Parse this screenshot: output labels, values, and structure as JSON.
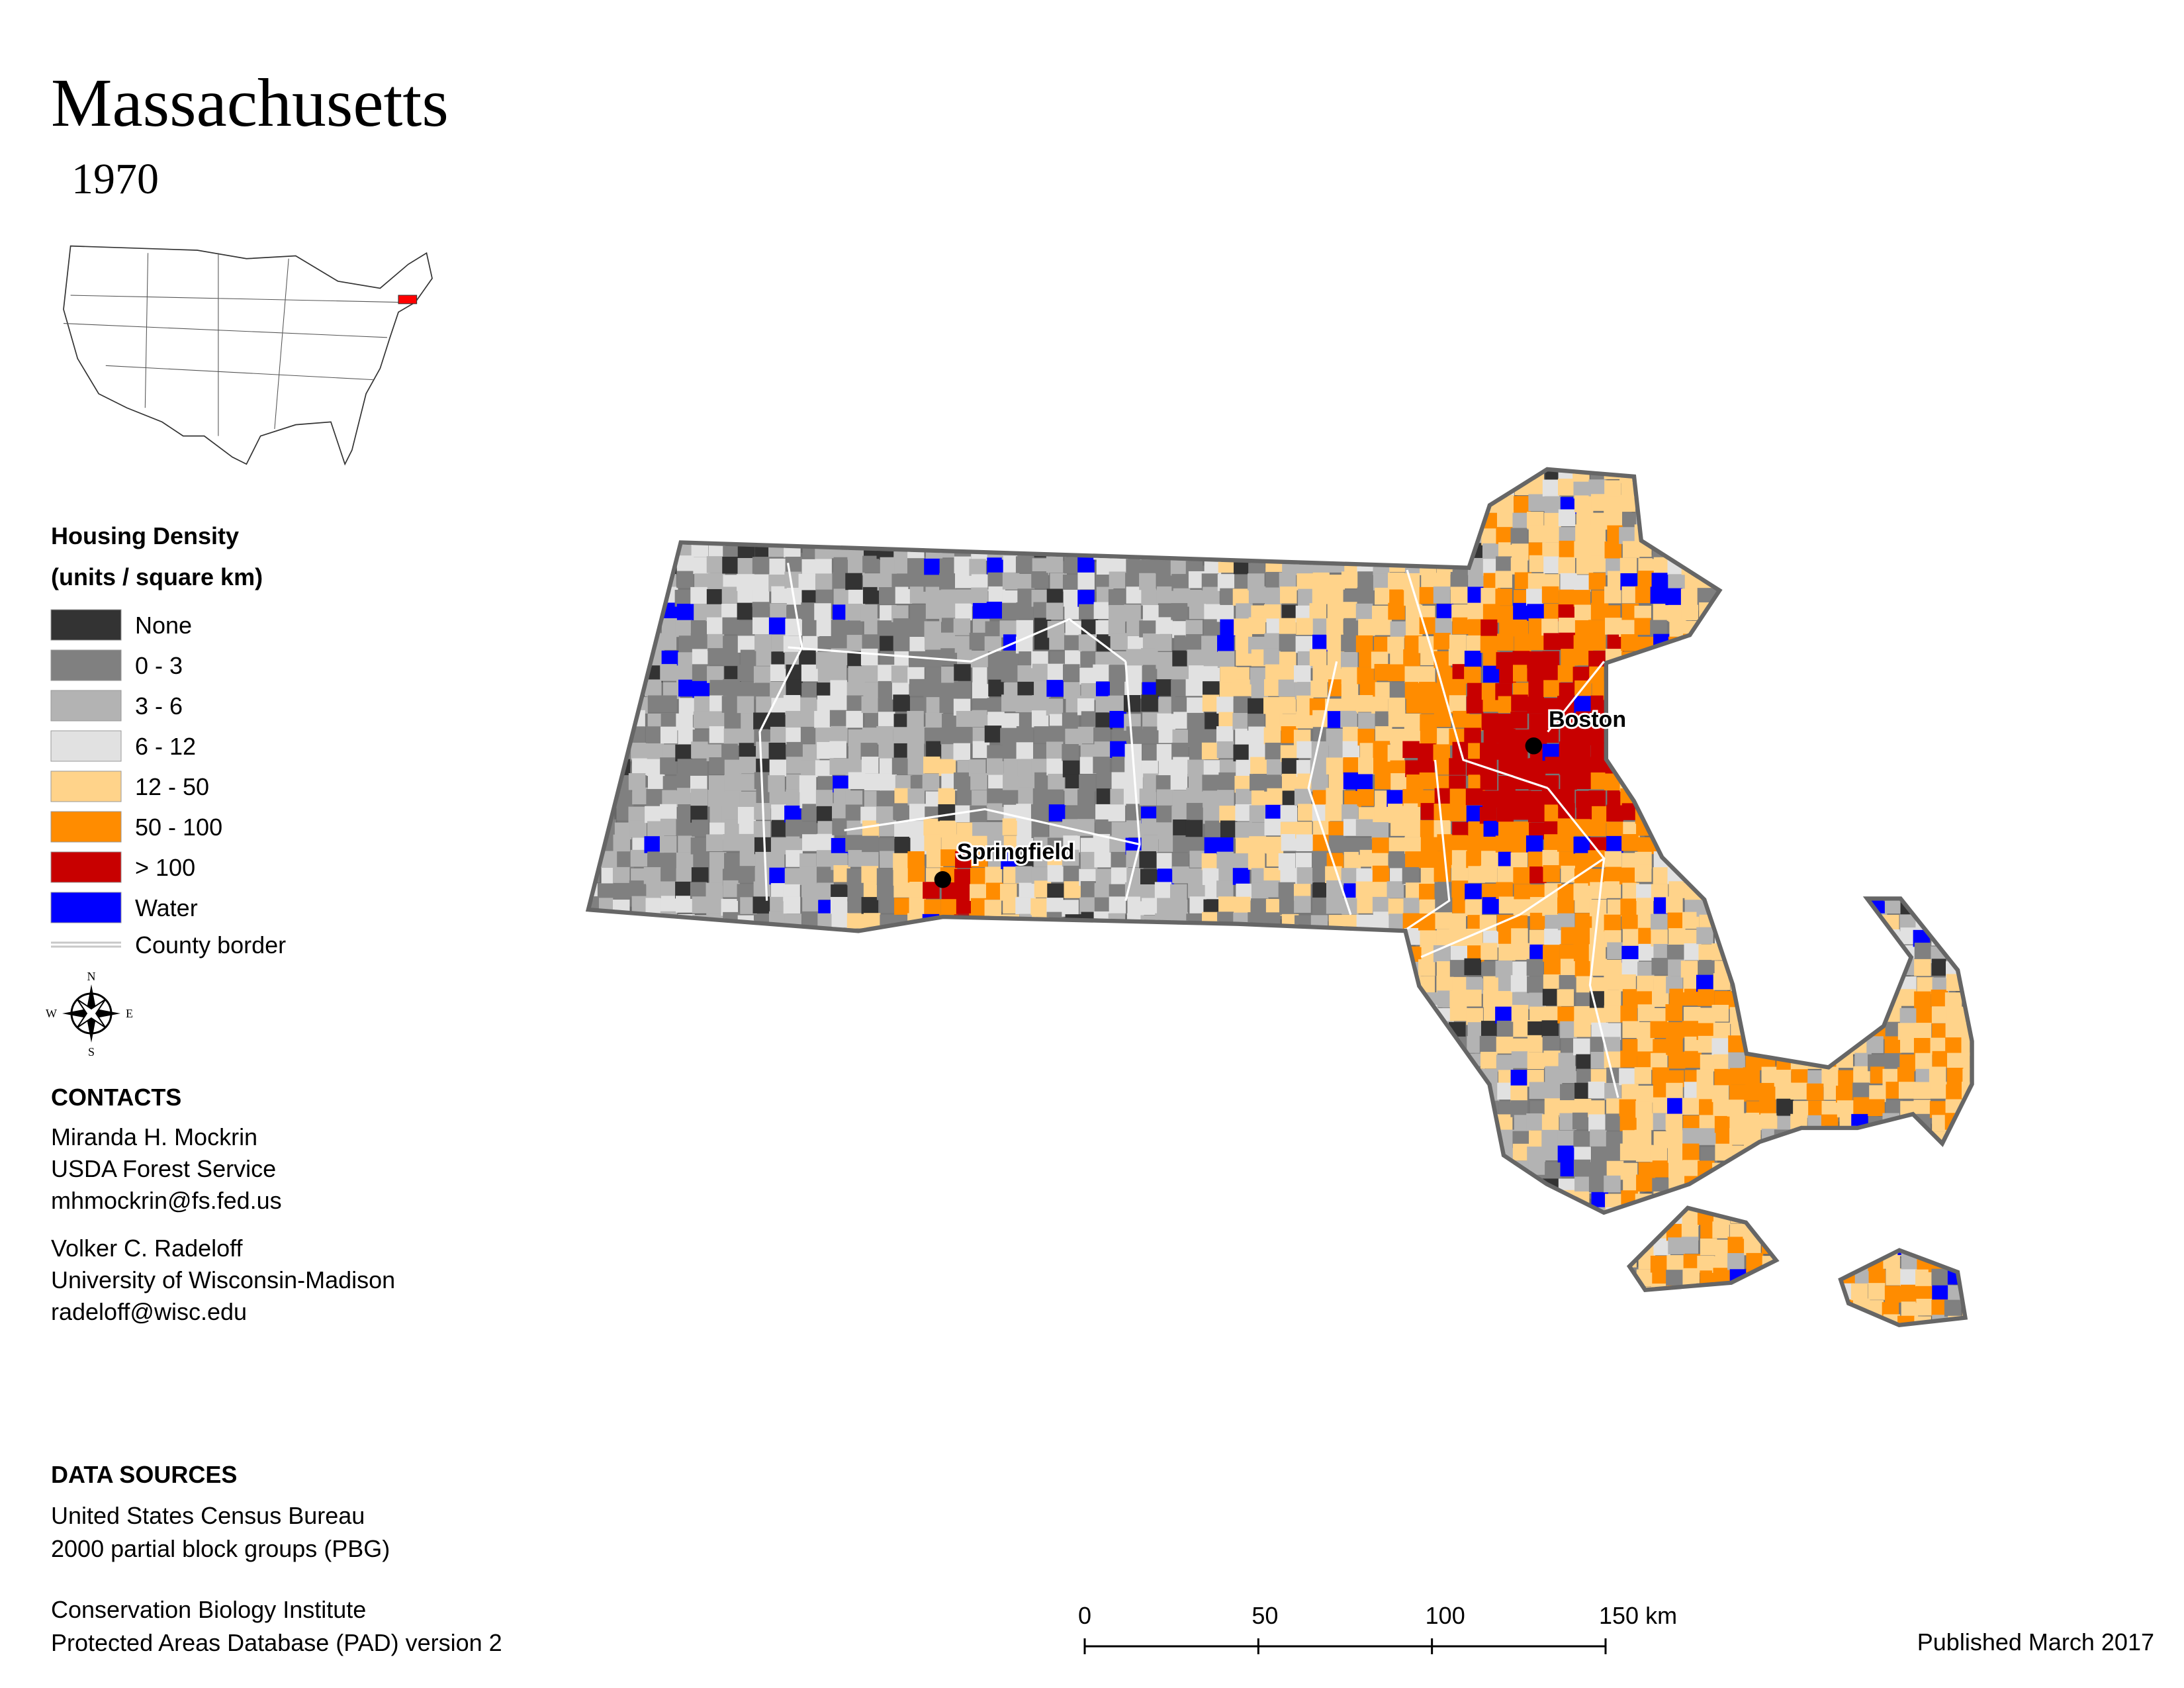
{
  "title": "Massachusetts",
  "subtitle": "1970",
  "legend": {
    "title": "Housing Density",
    "subtitle": "(units / square km)",
    "items": [
      {
        "label": "None",
        "color": "#333333"
      },
      {
        "label": "0 - 3",
        "color": "#808080"
      },
      {
        "label": "3 - 6",
        "color": "#b3b3b3"
      },
      {
        "label": "6 - 12",
        "color": "#e1e1e1"
      },
      {
        "label": "12 - 50",
        "color": "#ffd38a"
      },
      {
        "label": "50 - 100",
        "color": "#ff8c00"
      },
      {
        "label": "> 100",
        "color": "#c80000"
      },
      {
        "label": "Water",
        "color": "#0000ff"
      }
    ],
    "county_border": "County border"
  },
  "compass": {
    "n": "N",
    "e": "E",
    "s": "S",
    "w": "W"
  },
  "cities": [
    {
      "name": "Boston"
    },
    {
      "name": "Springfield"
    }
  ],
  "contacts": {
    "heading": "CONTACTS",
    "people": [
      [
        "Miranda H. Mockrin",
        "USDA Forest Service",
        "mhmockrin@fs.fed.us"
      ],
      [
        "Volker C. Radeloff",
        "University of Wisconsin-Madison",
        "radeloff@wisc.edu"
      ]
    ]
  },
  "data_sources": {
    "heading": "DATA SOURCES",
    "groups": [
      [
        "United States Census Bureau",
        "2000 partial block groups (PBG)"
      ],
      [
        "Conservation Biology Institute",
        "Protected Areas Database (PAD) version 2"
      ]
    ]
  },
  "scale_bar": {
    "ticks": [
      0,
      50,
      100,
      {
        "value": 150,
        "label": "150 km"
      }
    ]
  },
  "published": "Published March 2017"
}
